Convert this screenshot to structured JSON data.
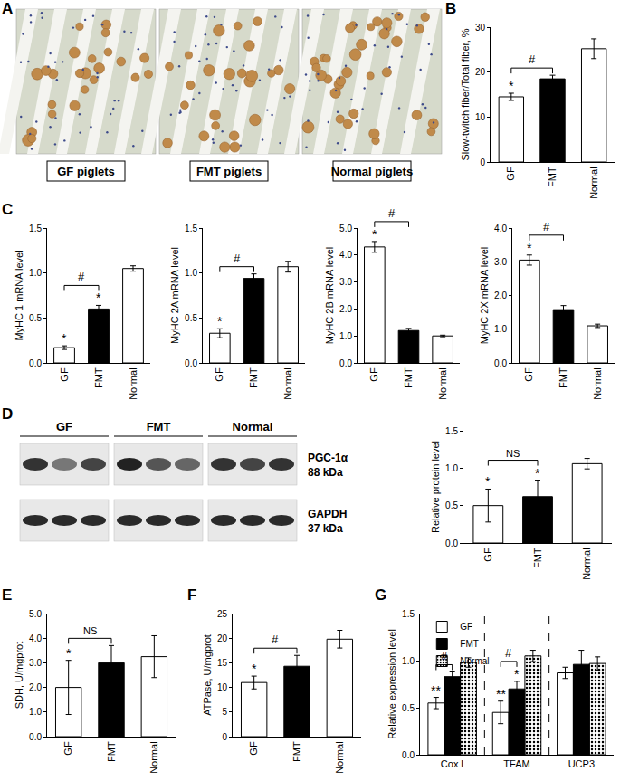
{
  "figure": {
    "panel_A": {
      "label": "A",
      "images": [
        "GF piglets",
        "FMT piglets",
        "Normal piglets"
      ]
    },
    "panel_D_blot": {
      "label": "D",
      "groups": [
        "GF",
        "FMT",
        "Normal"
      ],
      "bands": [
        {
          "protein": "PGC-1α",
          "size": "88 kDa"
        },
        {
          "protein": "GAPDH",
          "size": "37 kDa"
        }
      ]
    }
  },
  "chart_data": [
    {
      "label": "B",
      "type": "bar",
      "categories": [
        "GF",
        "FMT",
        "Normal"
      ],
      "values": [
        14.5,
        18.5,
        25.2
      ],
      "errors": [
        0.8,
        0.8,
        2.2
      ],
      "colors": [
        "#ffffff",
        "#000000",
        "#ffffff"
      ],
      "ylabel": "Slow-twitch fiber/Total fiber, %",
      "ylim": [
        0,
        30
      ],
      "yticks": [
        0,
        10,
        20,
        30
      ],
      "marks": [
        {
          "category": "GF",
          "text": "*"
        }
      ],
      "brackets": [
        {
          "from": "GF",
          "to": "FMT",
          "text": "#"
        }
      ]
    },
    {
      "label": "C",
      "type": "bar",
      "categories": [
        "GF",
        "FMT",
        "Normal"
      ],
      "values": [
        0.17,
        0.6,
        1.05
      ],
      "errors": [
        0.02,
        0.04,
        0.03
      ],
      "colors": [
        "#ffffff",
        "#000000",
        "#ffffff"
      ],
      "ylabel": "MyHC 1 mRNA level",
      "ylim": [
        0,
        1.5
      ],
      "yticks": [
        {
          "value": 0,
          "label": "0.0"
        },
        0.5,
        {
          "value": 1,
          "label": "1.0"
        },
        1.5
      ],
      "marks": [
        {
          "category": "GF",
          "text": "*"
        },
        {
          "category": "FMT",
          "text": "*"
        }
      ],
      "brackets": [
        {
          "from": "GF",
          "to": "FMT",
          "text": "#"
        }
      ]
    },
    {
      "type": "bar",
      "categories": [
        "GF",
        "FMT",
        "Normal"
      ],
      "values": [
        0.33,
        0.94,
        1.07
      ],
      "errors": [
        0.05,
        0.05,
        0.06
      ],
      "colors": [
        "#ffffff",
        "#000000",
        "#ffffff"
      ],
      "ylabel": "MyHC 2A mRNA level",
      "ylim": [
        0,
        1.5
      ],
      "yticks": [
        {
          "value": 0,
          "label": "0.0"
        },
        0.5,
        {
          "value": 1,
          "label": "1.0"
        },
        1.5
      ],
      "marks": [
        {
          "category": "GF",
          "text": "*"
        }
      ],
      "brackets": [
        {
          "from": "GF",
          "to": "FMT",
          "text": "#"
        }
      ]
    },
    {
      "type": "bar",
      "categories": [
        "GF",
        "FMT",
        "Normal"
      ],
      "values": [
        4.3,
        1.2,
        1.0
      ],
      "errors": [
        0.2,
        0.08,
        0.03
      ],
      "colors": [
        "#ffffff",
        "#000000",
        "#ffffff"
      ],
      "ylabel": "MyHC 2B mRNA level",
      "ylim": [
        0,
        5
      ],
      "yticks": [
        {
          "value": 0,
          "label": "0.0"
        },
        {
          "value": 1,
          "label": "1.0"
        },
        {
          "value": 2,
          "label": "2.0"
        },
        {
          "value": 3,
          "label": "3.0"
        },
        {
          "value": 4,
          "label": "4.0"
        },
        {
          "value": 5,
          "label": "5.0"
        }
      ],
      "marks": [
        {
          "category": "GF",
          "text": "*"
        }
      ],
      "brackets": [
        {
          "from": "GF",
          "to": "FMT",
          "text": "#"
        }
      ]
    },
    {
      "type": "bar",
      "categories": [
        "GF",
        "FMT",
        "Normal"
      ],
      "values": [
        3.05,
        1.58,
        1.1
      ],
      "errors": [
        0.15,
        0.12,
        0.05
      ],
      "colors": [
        "#ffffff",
        "#000000",
        "#ffffff"
      ],
      "ylabel": "MyHC 2X mRNA level",
      "ylim": [
        0,
        4
      ],
      "yticks": [
        {
          "value": 0,
          "label": "0.0"
        },
        {
          "value": 1,
          "label": "1.0"
        },
        {
          "value": 2,
          "label": "2.0"
        },
        {
          "value": 3,
          "label": "3.0"
        },
        {
          "value": 4,
          "label": "4.0"
        }
      ],
      "marks": [
        {
          "category": "GF",
          "text": "*"
        }
      ],
      "brackets": [
        {
          "from": "GF",
          "to": "FMT",
          "text": "#"
        }
      ]
    },
    {
      "type": "bar",
      "categories": [
        "GF",
        "FMT",
        "Normal"
      ],
      "values": [
        0.5,
        0.62,
        1.06
      ],
      "errors": [
        0.22,
        0.22,
        0.07
      ],
      "colors": [
        "#ffffff",
        "#000000",
        "#ffffff"
      ],
      "ylabel": "Relative protein level",
      "ylim": [
        0,
        1.5
      ],
      "yticks": [
        {
          "value": 0,
          "label": "0.0"
        },
        0.5,
        {
          "value": 1,
          "label": "1.0"
        },
        1.5
      ],
      "marks": [
        {
          "category": "GF",
          "text": "*"
        },
        {
          "category": "FMT",
          "text": "*"
        }
      ],
      "brackets": [
        {
          "from": "GF",
          "to": "FMT",
          "text": "NS"
        }
      ]
    },
    {
      "label": "E",
      "type": "bar",
      "categories": [
        "GF",
        "FMT",
        "Normal"
      ],
      "values": [
        2.0,
        3.0,
        3.25
      ],
      "errors": [
        1.1,
        0.7,
        0.85
      ],
      "colors": [
        "#ffffff",
        "#000000",
        "#ffffff"
      ],
      "ylabel": "SDH, U/mgprot",
      "ylim": [
        0,
        5
      ],
      "yticks": [
        {
          "value": 0,
          "label": "0.0"
        },
        {
          "value": 1,
          "label": "1.0"
        },
        {
          "value": 2,
          "label": "2.0"
        },
        {
          "value": 3,
          "label": "3.0"
        },
        {
          "value": 4,
          "label": "4.0"
        },
        {
          "value": 5,
          "label": "5.0"
        }
      ],
      "marks": [
        {
          "category": "GF",
          "text": "*"
        }
      ],
      "brackets": [
        {
          "from": "GF",
          "to": "FMT",
          "text": "NS"
        }
      ]
    },
    {
      "label": "F",
      "type": "bar",
      "categories": [
        "GF",
        "FMT",
        "Normal"
      ],
      "values": [
        11.0,
        14.3,
        19.8
      ],
      "errors": [
        1.3,
        2.2,
        1.8
      ],
      "colors": [
        "#ffffff",
        "#000000",
        "#ffffff"
      ],
      "ylabel": "ATPase, U/mgprot",
      "ylim": [
        0,
        25
      ],
      "yticks": [
        0,
        5,
        10,
        15,
        20,
        25
      ],
      "marks": [
        {
          "category": "GF",
          "text": "*"
        }
      ],
      "brackets": [
        {
          "from": "GF",
          "to": "FMT",
          "text": "#"
        }
      ]
    },
    {
      "label": "G",
      "type": "bar",
      "categories": [
        "Cox Ⅰ",
        "TFAM",
        "UCP3"
      ],
      "ylabel": "Relative expression level",
      "ylim": [
        0,
        1.5
      ],
      "yticks": [
        {
          "value": 0,
          "label": "0.0"
        },
        0.5,
        {
          "value": 1,
          "label": "1.0"
        },
        1.5
      ],
      "legend": "top-left",
      "series": [
        {
          "name": "GF",
          "color": "#ffffff",
          "values": [
            0.55,
            0.45,
            0.87
          ],
          "errors": [
            0.06,
            0.12,
            0.06
          ]
        },
        {
          "name": "FMT",
          "color": "#000000",
          "values": [
            0.83,
            0.7,
            0.96
          ],
          "errors": [
            0.05,
            0.08,
            0.15
          ]
        },
        {
          "name": "Normal",
          "color": "#ffffff",
          "values": [
            0.98,
            1.05,
            0.97
          ],
          "errors": [
            0.05,
            0.06,
            0.07
          ]
        }
      ],
      "marks": [
        {
          "category": "Cox Ⅰ",
          "series": "GF",
          "text": "**"
        },
        {
          "category": "TFAM",
          "series": "GF",
          "text": "**"
        },
        {
          "category": "TFAM",
          "series": "FMT",
          "text": "*"
        }
      ],
      "brackets": [
        {
          "category": "Cox Ⅰ",
          "from": "GF",
          "to": "FMT",
          "text": "#"
        },
        {
          "category": "TFAM",
          "from": "GF",
          "to": "FMT",
          "text": "#"
        }
      ]
    }
  ]
}
